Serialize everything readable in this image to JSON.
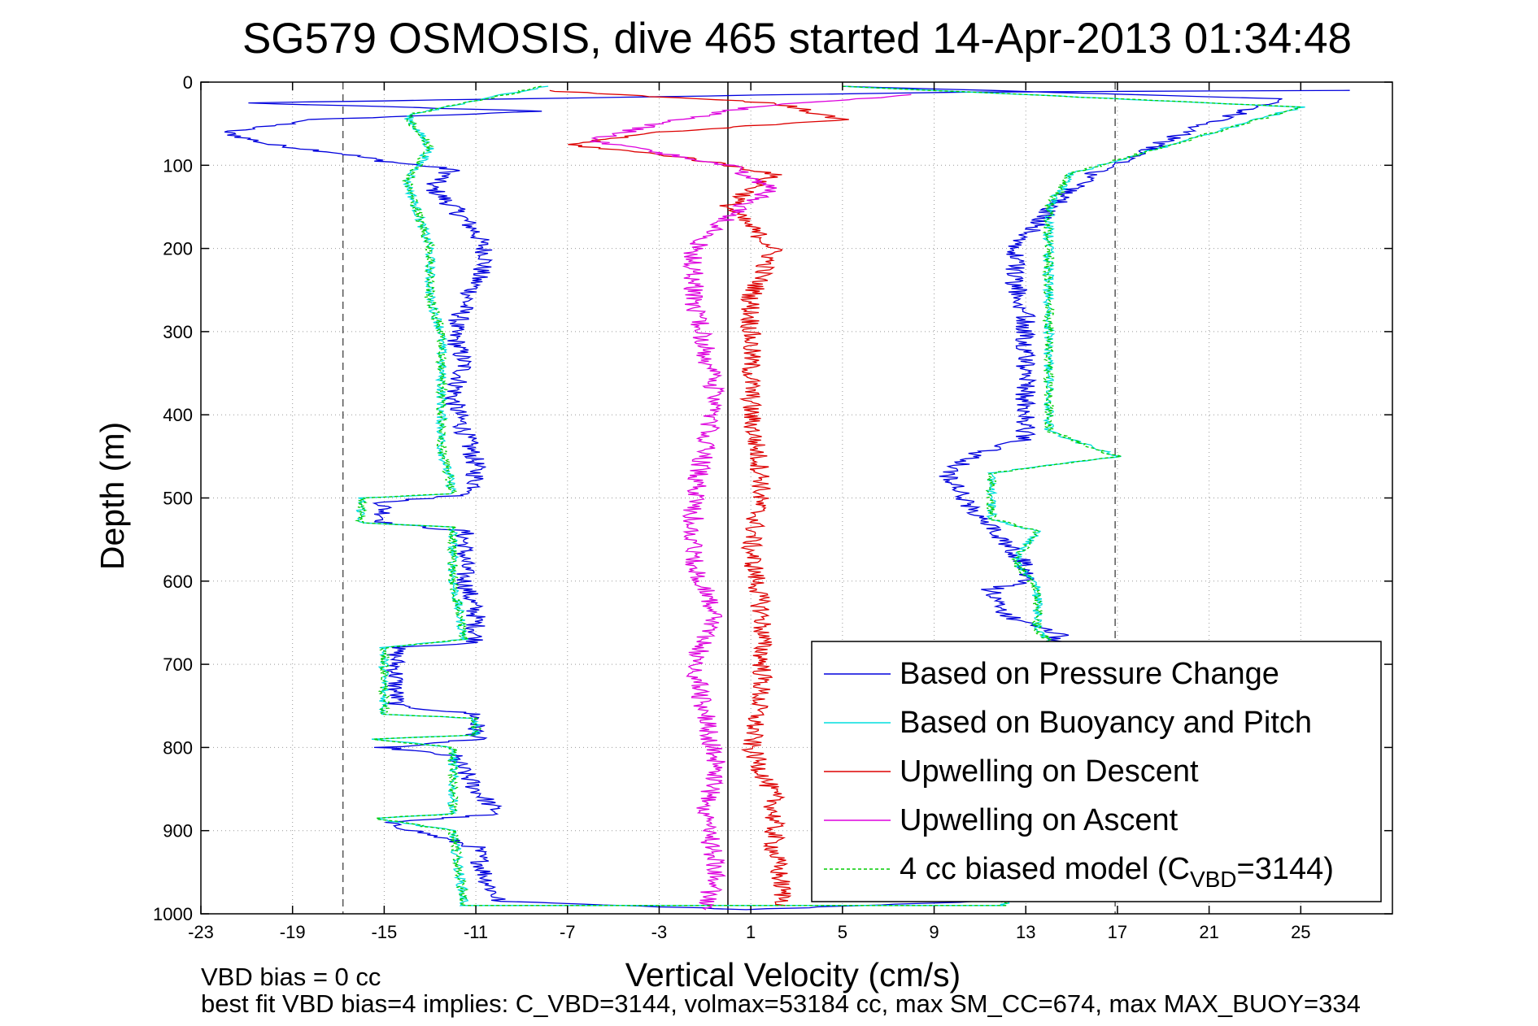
{
  "chart_data": {
    "type": "line",
    "title": "SG579 OSMOSIS, dive 465 started 14-Apr-2013 01:34:48",
    "xlabel": "Vertical Velocity (cm/s)",
    "ylabel": "Depth (m)",
    "xlim": [
      -23,
      29
    ],
    "ylim": [
      0,
      1000
    ],
    "y_reversed": true,
    "xticks": [
      -23,
      -19,
      -15,
      -11,
      -7,
      -3,
      1,
      5,
      9,
      13,
      17,
      21,
      25
    ],
    "yticks": [
      0,
      100,
      200,
      300,
      400,
      500,
      600,
      700,
      800,
      900,
      1000
    ],
    "grid": true,
    "legend_position": "lower-right",
    "vertical_lines": [
      {
        "x": -16.8,
        "style": "dashed",
        "color": "#555555"
      },
      {
        "x": 16.9,
        "style": "dashed",
        "color": "#555555"
      },
      {
        "x": 0,
        "style": "solid",
        "color": "#000000"
      }
    ],
    "series": [
      {
        "name": "Based on Pressure Change",
        "color": "#0000dd",
        "style": "solid",
        "points": [
          [
            {
              "x": 27,
              "y": 10
            },
            {
              "x": 10,
              "y": 12
            },
            {
              "x": -21,
              "y": 25
            },
            {
              "x": -8,
              "y": 35
            },
            {
              "x": -18,
              "y": 45
            },
            {
              "x": -22,
              "y": 60
            },
            {
              "x": -20,
              "y": 75
            },
            {
              "x": -17,
              "y": 85
            },
            {
              "x": -15,
              "y": 95
            },
            {
              "x": -12,
              "y": 105
            },
            {
              "x": -13,
              "y": 125
            },
            {
              "x": -12,
              "y": 150
            },
            {
              "x": -11,
              "y": 180
            },
            {
              "x": -10.5,
              "y": 210
            },
            {
              "x": -11,
              "y": 240
            },
            {
              "x": -11.5,
              "y": 270
            },
            {
              "x": -12,
              "y": 300
            },
            {
              "x": -11.5,
              "y": 340
            },
            {
              "x": -12,
              "y": 380
            },
            {
              "x": -11.5,
              "y": 420
            },
            {
              "x": -11,
              "y": 460
            },
            {
              "x": -11,
              "y": 495
            },
            {
              "x": -15,
              "y": 505
            },
            {
              "x": -15,
              "y": 530
            },
            {
              "x": -11.5,
              "y": 540
            },
            {
              "x": -11.5,
              "y": 600
            },
            {
              "x": -11,
              "y": 640
            },
            {
              "x": -11,
              "y": 675
            },
            {
              "x": -14.5,
              "y": 680
            },
            {
              "x": -14.5,
              "y": 750
            },
            {
              "x": -11,
              "y": 760
            },
            {
              "x": -11,
              "y": 790
            },
            {
              "x": -15,
              "y": 800
            },
            {
              "x": -12,
              "y": 810
            },
            {
              "x": -11,
              "y": 850
            },
            {
              "x": -10,
              "y": 880
            },
            {
              "x": -15,
              "y": 890
            },
            {
              "x": -11,
              "y": 920
            },
            {
              "x": -10.5,
              "y": 960
            },
            {
              "x": -10,
              "y": 985
            },
            {
              "x": 1,
              "y": 995
            },
            {
              "x": 11,
              "y": 985
            },
            {
              "x": 13,
              "y": 950
            },
            {
              "x": 13,
              "y": 900
            },
            {
              "x": 13,
              "y": 850
            },
            {
              "x": 13,
              "y": 790
            },
            {
              "x": 13.5,
              "y": 740
            },
            {
              "x": 14,
              "y": 690
            },
            {
              "x": 14.5,
              "y": 665
            },
            {
              "x": 12,
              "y": 640
            },
            {
              "x": 11.5,
              "y": 610
            },
            {
              "x": 13,
              "y": 600
            },
            {
              "x": 13,
              "y": 580
            },
            {
              "x": 12,
              "y": 550
            },
            {
              "x": 11,
              "y": 525
            },
            {
              "x": 10,
              "y": 490
            },
            {
              "x": 9.5,
              "y": 470
            },
            {
              "x": 11,
              "y": 445
            },
            {
              "x": 13,
              "y": 430
            },
            {
              "x": 13,
              "y": 410
            },
            {
              "x": 13,
              "y": 370
            },
            {
              "x": 13,
              "y": 320
            },
            {
              "x": 13,
              "y": 280
            },
            {
              "x": 12.5,
              "y": 240
            },
            {
              "x": 12.5,
              "y": 200
            },
            {
              "x": 13.5,
              "y": 170
            },
            {
              "x": 14.5,
              "y": 140
            },
            {
              "x": 16,
              "y": 110
            },
            {
              "x": 20,
              "y": 60
            },
            {
              "x": 24,
              "y": 20
            },
            {
              "x": 5,
              "y": 5
            }
          ]
        ]
      },
      {
        "name": "Based on Buoyancy and Pitch",
        "color": "#00dddd",
        "style": "solid",
        "points": [
          [
            {
              "x": -8,
              "y": 5
            },
            {
              "x": -14,
              "y": 40
            },
            {
              "x": -13,
              "y": 80
            },
            {
              "x": -14,
              "y": 120
            },
            {
              "x": -13.5,
              "y": 160
            },
            {
              "x": -13,
              "y": 200
            },
            {
              "x": -13,
              "y": 260
            },
            {
              "x": -12.5,
              "y": 300
            },
            {
              "x": -12.5,
              "y": 380
            },
            {
              "x": -12.5,
              "y": 440
            },
            {
              "x": -12,
              "y": 495
            },
            {
              "x": -16,
              "y": 500
            },
            {
              "x": -16,
              "y": 530
            },
            {
              "x": -12,
              "y": 535
            },
            {
              "x": -12,
              "y": 600
            },
            {
              "x": -11.5,
              "y": 670
            },
            {
              "x": -15,
              "y": 680
            },
            {
              "x": -15,
              "y": 760
            },
            {
              "x": -11,
              "y": 765
            },
            {
              "x": -11,
              "y": 785
            },
            {
              "x": -15.5,
              "y": 790
            },
            {
              "x": -12,
              "y": 800
            },
            {
              "x": -12,
              "y": 880
            },
            {
              "x": -15.5,
              "y": 885
            },
            {
              "x": -12,
              "y": 900
            },
            {
              "x": -11.5,
              "y": 990
            },
            {
              "x": 12,
              "y": 990
            },
            {
              "x": 13.5,
              "y": 950
            },
            {
              "x": 13.5,
              "y": 850
            },
            {
              "x": 14,
              "y": 770
            },
            {
              "x": 14.5,
              "y": 680
            },
            {
              "x": 13.5,
              "y": 660
            },
            {
              "x": 13.5,
              "y": 610
            },
            {
              "x": 12.5,
              "y": 575
            },
            {
              "x": 13.5,
              "y": 540
            },
            {
              "x": 11.5,
              "y": 525
            },
            {
              "x": 11.5,
              "y": 470
            },
            {
              "x": 17,
              "y": 450
            },
            {
              "x": 14,
              "y": 420
            },
            {
              "x": 14,
              "y": 300
            },
            {
              "x": 14,
              "y": 150
            },
            {
              "x": 15,
              "y": 110
            },
            {
              "x": 25,
              "y": 30
            },
            {
              "x": 5,
              "y": 5
            }
          ]
        ]
      },
      {
        "name": "Upwelling on Descent",
        "color": "#dd0000",
        "style": "solid",
        "points": [
          [
            {
              "x": -8,
              "y": 10
            },
            {
              "x": 2,
              "y": 25
            },
            {
              "x": 5,
              "y": 45
            },
            {
              "x": -3,
              "y": 60
            },
            {
              "x": -7,
              "y": 75
            },
            {
              "x": -2,
              "y": 90
            },
            {
              "x": 2,
              "y": 110
            },
            {
              "x": 0,
              "y": 150
            },
            {
              "x": 2,
              "y": 200
            },
            {
              "x": 1,
              "y": 260
            },
            {
              "x": 1,
              "y": 320
            },
            {
              "x": 1,
              "y": 400
            },
            {
              "x": 1.5,
              "y": 480
            },
            {
              "x": 1,
              "y": 560
            },
            {
              "x": 1.5,
              "y": 640
            },
            {
              "x": 1.5,
              "y": 720
            },
            {
              "x": 1,
              "y": 800
            },
            {
              "x": 2,
              "y": 860
            },
            {
              "x": 2,
              "y": 920
            },
            {
              "x": 2.5,
              "y": 990
            }
          ]
        ]
      },
      {
        "name": "Upwelling on Ascent",
        "color": "#dd00dd",
        "style": "solid",
        "points": [
          [
            {
              "x": -1,
              "y": 995
            },
            {
              "x": -0.5,
              "y": 950
            },
            {
              "x": -1,
              "y": 880
            },
            {
              "x": -0.5,
              "y": 820
            },
            {
              "x": -1,
              "y": 760
            },
            {
              "x": -1.5,
              "y": 700
            },
            {
              "x": -0.5,
              "y": 640
            },
            {
              "x": -1.5,
              "y": 580
            },
            {
              "x": -1.5,
              "y": 500
            },
            {
              "x": -1,
              "y": 440
            },
            {
              "x": -0.5,
              "y": 380
            },
            {
              "x": -1,
              "y": 320
            },
            {
              "x": -1.5,
              "y": 260
            },
            {
              "x": -1.5,
              "y": 200
            },
            {
              "x": 0.5,
              "y": 150
            },
            {
              "x": 2,
              "y": 130
            },
            {
              "x": 0,
              "y": 100
            },
            {
              "x": -6,
              "y": 70
            },
            {
              "x": -3,
              "y": 50
            },
            {
              "x": 1,
              "y": 30
            },
            {
              "x": 8,
              "y": 15
            }
          ]
        ]
      },
      {
        "name": "4 cc biased model",
        "legend_prefix": "4 cc biased model (C",
        "legend_sub": "VBD",
        "legend_suffix": "=3144)",
        "color": "#00cc00",
        "style": "dashed",
        "points": [
          [
            {
              "x": -8,
              "y": 5
            },
            {
              "x": -14,
              "y": 40
            },
            {
              "x": -13,
              "y": 80
            },
            {
              "x": -14,
              "y": 120
            },
            {
              "x": -13.5,
              "y": 160
            },
            {
              "x": -13,
              "y": 200
            },
            {
              "x": -13,
              "y": 260
            },
            {
              "x": -12.5,
              "y": 300
            },
            {
              "x": -12.5,
              "y": 380
            },
            {
              "x": -12.5,
              "y": 440
            },
            {
              "x": -12,
              "y": 495
            },
            {
              "x": -16,
              "y": 500
            },
            {
              "x": -16,
              "y": 530
            },
            {
              "x": -12,
              "y": 535
            },
            {
              "x": -12,
              "y": 600
            },
            {
              "x": -11.5,
              "y": 670
            },
            {
              "x": -15,
              "y": 680
            },
            {
              "x": -15,
              "y": 760
            },
            {
              "x": -11,
              "y": 765
            },
            {
              "x": -11,
              "y": 785
            },
            {
              "x": -15.5,
              "y": 790
            },
            {
              "x": -12,
              "y": 800
            },
            {
              "x": -12,
              "y": 880
            },
            {
              "x": -15.5,
              "y": 885
            },
            {
              "x": -12,
              "y": 900
            },
            {
              "x": -11.5,
              "y": 990
            },
            {
              "x": 12,
              "y": 990
            },
            {
              "x": 13.5,
              "y": 950
            },
            {
              "x": 13.5,
              "y": 850
            },
            {
              "x": 14,
              "y": 770
            },
            {
              "x": 14.5,
              "y": 680
            },
            {
              "x": 13.5,
              "y": 660
            },
            {
              "x": 13.5,
              "y": 610
            },
            {
              "x": 12.5,
              "y": 575
            },
            {
              "x": 13.5,
              "y": 540
            },
            {
              "x": 11.5,
              "y": 525
            },
            {
              "x": 11.5,
              "y": 470
            },
            {
              "x": 17,
              "y": 450
            },
            {
              "x": 14,
              "y": 420
            },
            {
              "x": 14,
              "y": 300
            },
            {
              "x": 14,
              "y": 150
            },
            {
              "x": 15,
              "y": 110
            },
            {
              "x": 25,
              "y": 30
            },
            {
              "x": 5,
              "y": 5
            }
          ]
        ]
      }
    ],
    "annotations": [
      "VBD bias = 0 cc",
      "best fit VBD bias=4 implies: C_VBD=3144, volmax=53184 cc, max SM_CC=674, max MAX_BUOY=334"
    ]
  }
}
